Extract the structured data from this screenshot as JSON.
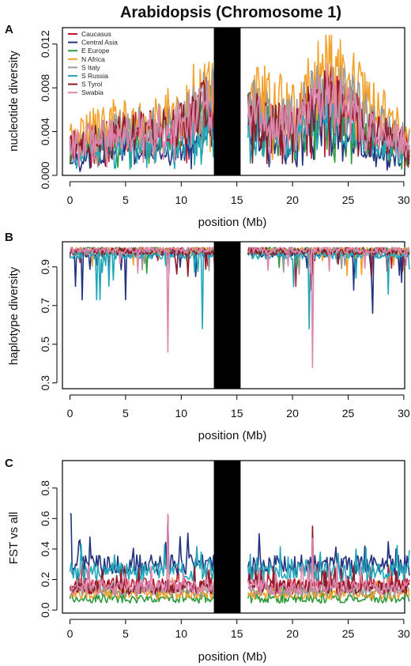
{
  "figure_title": "Arabidopsis (Chromosome 1)",
  "colors": {
    "Caucasus": "#c1172d",
    "Central Asia": "#22347f",
    "E Europe": "#2e9a3c",
    "N Africa": "#f2a12c",
    "S Italy": "#9a9a9a",
    "S Russia": "#22a6ba",
    "S Tyrol": "#8c1a2a",
    "Swabia": "#df86ae",
    "centromere": "#000000"
  },
  "chart_data": [
    {
      "type": "line",
      "panel": "A",
      "title": "",
      "xlabel": "position (Mb)",
      "ylabel": "nucleotide diversity",
      "xlim": [
        0,
        30.5
      ],
      "ylim": [
        0,
        0.0135
      ],
      "xticks": [
        "0",
        "5",
        "10",
        "15",
        "20",
        "25",
        "30"
      ],
      "yticks": [
        "0.000",
        "0.004",
        "0.008",
        "0.012"
      ],
      "ytick_values": [
        0,
        0.004,
        0.008,
        0.012
      ],
      "centromere": [
        13.6,
        16.0
      ],
      "legend": [
        "Caucasus",
        "Central Asia",
        "E Europe",
        "N Africa",
        "S Italy",
        "S Russia",
        "S Tyrol",
        "Swabia"
      ],
      "legend_position": "top-left",
      "grid": false,
      "series_anchor_x": [
        0,
        2,
        4,
        6,
        8,
        10,
        11.5,
        13.5,
        16.2,
        18,
        20,
        22,
        23,
        25,
        27,
        29,
        30.5
      ],
      "series": [
        {
          "name": "Caucasus",
          "anchors": [
            0.0028,
            0.0035,
            0.0038,
            0.0042,
            0.0045,
            0.0048,
            0.006,
            0.0072,
            0.0058,
            0.005,
            0.0045,
            0.0065,
            0.0075,
            0.006,
            0.004,
            0.0035,
            0.0028
          ]
        },
        {
          "name": "Central Asia",
          "anchors": [
            0.0015,
            0.0018,
            0.0022,
            0.0025,
            0.0022,
            0.002,
            0.0035,
            0.005,
            0.004,
            0.0032,
            0.0025,
            0.0045,
            0.005,
            0.0035,
            0.0025,
            0.002,
            0.0015
          ]
        },
        {
          "name": "E Europe",
          "anchors": [
            0.0025,
            0.003,
            0.0033,
            0.0036,
            0.0038,
            0.004,
            0.005,
            0.0065,
            0.0052,
            0.0045,
            0.004,
            0.0058,
            0.0065,
            0.0052,
            0.0038,
            0.003,
            0.0025
          ]
        },
        {
          "name": "N Africa",
          "anchors": [
            0.0035,
            0.0042,
            0.0048,
            0.005,
            0.0055,
            0.0058,
            0.0075,
            0.009,
            0.0075,
            0.0068,
            0.006,
            0.0085,
            0.01,
            0.0085,
            0.0065,
            0.0048,
            0.0035
          ]
        },
        {
          "name": "S Italy",
          "anchors": [
            0.003,
            0.0036,
            0.004,
            0.0043,
            0.0046,
            0.005,
            0.0062,
            0.0075,
            0.0062,
            0.0055,
            0.005,
            0.007,
            0.008,
            0.0068,
            0.005,
            0.004,
            0.003
          ]
        },
        {
          "name": "S Russia",
          "anchors": [
            0.002,
            0.0025,
            0.0028,
            0.003,
            0.0028,
            0.0025,
            0.004,
            0.0055,
            0.0045,
            0.0038,
            0.003,
            0.005,
            0.0058,
            0.0042,
            0.003,
            0.0025,
            0.0018
          ]
        },
        {
          "name": "S Tyrol",
          "anchors": [
            0.0027,
            0.0033,
            0.0036,
            0.004,
            0.0043,
            0.0046,
            0.0058,
            0.0068,
            0.0055,
            0.0048,
            0.0042,
            0.0062,
            0.007,
            0.0058,
            0.0042,
            0.0034,
            0.0027
          ]
        },
        {
          "name": "Swabia",
          "anchors": [
            0.0028,
            0.0034,
            0.0037,
            0.004,
            0.0044,
            0.0047,
            0.006,
            0.007,
            0.0057,
            0.0049,
            0.0044,
            0.0063,
            0.0072,
            0.0059,
            0.0043,
            0.0035,
            0.0028
          ]
        }
      ]
    },
    {
      "type": "line",
      "panel": "B",
      "title": "",
      "xlabel": "position (Mb)",
      "ylabel": "haplotype diversity",
      "xlim": [
        0,
        30.5
      ],
      "ylim": [
        0.27,
        1.03
      ],
      "xticks": [
        "0",
        "5",
        "10",
        "15",
        "20",
        "25",
        "30"
      ],
      "yticks": [
        "0.3",
        "0.5",
        "0.7",
        "0.9"
      ],
      "ytick_values": [
        0.3,
        0.5,
        0.7,
        0.9
      ],
      "centromere": [
        13.6,
        16.0
      ],
      "grid": false,
      "series": [
        {
          "name": "Caucasus",
          "baseline": 0.98,
          "dips": [
            [
              20.3,
              0.8
            ],
            [
              13.0,
              0.9
            ]
          ]
        },
        {
          "name": "Central Asia",
          "baseline": 0.97,
          "dips": [
            [
              0.5,
              0.8
            ],
            [
              1.1,
              0.73
            ],
            [
              5.0,
              0.73
            ],
            [
              11.3,
              0.85
            ],
            [
              25.5,
              0.78
            ],
            [
              27.2,
              0.66
            ],
            [
              29.8,
              0.82
            ]
          ]
        },
        {
          "name": "E Europe",
          "baseline": 0.985,
          "dips": [
            [
              3.0,
              0.93
            ],
            [
              17.0,
              0.95
            ]
          ]
        },
        {
          "name": "N Africa",
          "baseline": 0.985,
          "dips": [
            [
              8.0,
              0.95
            ],
            [
              23.0,
              0.95
            ]
          ]
        },
        {
          "name": "S Italy",
          "baseline": 0.975,
          "dips": [
            [
              12.5,
              0.88
            ],
            [
              24.0,
              0.92
            ]
          ]
        },
        {
          "name": "S Russia",
          "baseline": 0.96,
          "dips": [
            [
              2.4,
              0.73
            ],
            [
              2.7,
              0.73
            ],
            [
              3.5,
              0.8
            ],
            [
              11.9,
              0.58
            ],
            [
              20.1,
              0.8
            ],
            [
              21.5,
              0.58
            ],
            [
              28.6,
              0.76
            ]
          ]
        },
        {
          "name": "S Tyrol",
          "baseline": 0.98,
          "dips": [
            [
              21.7,
              0.78
            ],
            [
              9.5,
              0.92
            ]
          ]
        },
        {
          "name": "Swabia",
          "baseline": 0.99,
          "dips": [
            [
              8.8,
              0.46
            ],
            [
              21.8,
              0.38
            ],
            [
              13.1,
              0.68
            ]
          ]
        }
      ]
    },
    {
      "type": "line",
      "panel": "C",
      "title": "",
      "xlabel": "position (Mb)",
      "ylabel": "FST vs all",
      "xlim": [
        0,
        30.5
      ],
      "ylim": [
        -0.02,
        0.98
      ],
      "xticks": [
        "0",
        "5",
        "10",
        "15",
        "20",
        "25",
        "30"
      ],
      "yticks": [
        "0.0",
        "0.2",
        "0.4",
        "0.6",
        "0.8"
      ],
      "ytick_values": [
        0,
        0.2,
        0.4,
        0.6,
        0.8
      ],
      "centromere": [
        13.6,
        16.0
      ],
      "grid": false,
      "series": [
        {
          "name": "Caucasus",
          "level": 0.15,
          "amp": 0.1,
          "peaks": [
            [
              8.8,
              0.62
            ]
          ]
        },
        {
          "name": "Central Asia",
          "level": 0.28,
          "amp": 0.14,
          "peaks": [
            [
              0.05,
              0.63
            ],
            [
              0.9,
              0.46
            ],
            [
              8.8,
              0.62
            ],
            [
              26.5,
              0.42
            ]
          ]
        },
        {
          "name": "E Europe",
          "level": 0.07,
          "amp": 0.06,
          "peaks": []
        },
        {
          "name": "N Africa",
          "level": 0.1,
          "amp": 0.07,
          "peaks": []
        },
        {
          "name": "S Italy",
          "level": 0.12,
          "amp": 0.08,
          "peaks": []
        },
        {
          "name": "S Russia",
          "level": 0.24,
          "amp": 0.12,
          "peaks": [
            [
              1.0,
              0.43
            ],
            [
              11.8,
              0.38
            ],
            [
              22.5,
              0.38
            ]
          ]
        },
        {
          "name": "S Tyrol",
          "level": 0.14,
          "amp": 0.09,
          "peaks": [
            [
              21.8,
              0.55
            ]
          ]
        },
        {
          "name": "Swabia",
          "level": 0.14,
          "amp": 0.1,
          "peaks": [
            [
              8.8,
              0.63
            ],
            [
              21.8,
              0.47
            ]
          ]
        }
      ]
    }
  ]
}
